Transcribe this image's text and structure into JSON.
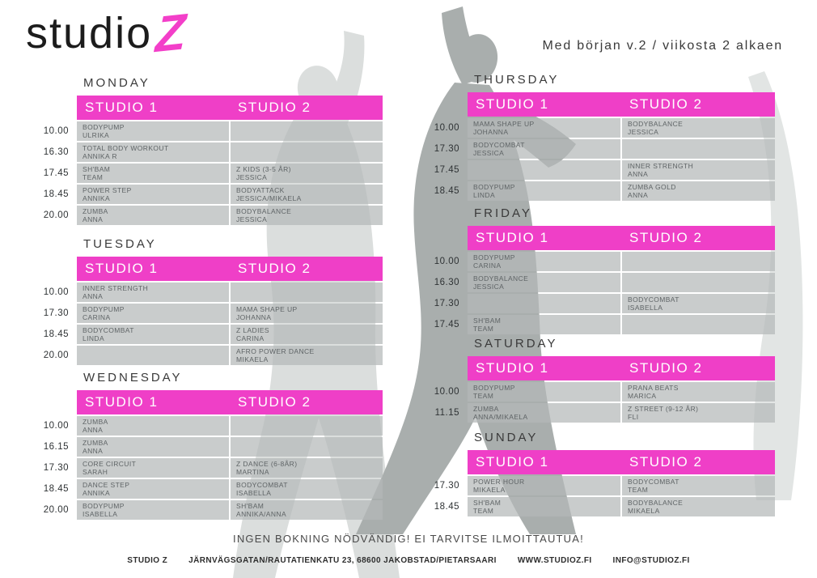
{
  "logo": {
    "word": "studio",
    "z": "Z"
  },
  "subtitle": "Med början v.2 / viikosta 2 alkaen",
  "table_headers": {
    "studio1": "STUDIO 1",
    "studio2": "STUDIO 2"
  },
  "colors": {
    "accent_pink": "#ef3fc7",
    "cell_gray": "#c9cccb",
    "silhouette_light": "#dbdedd",
    "silhouette_mid": "#a9aead"
  },
  "days": [
    {
      "name": "MONDAY",
      "rows": [
        {
          "time": "10.00",
          "studio1": {
            "class": "BODYPUMP",
            "instructor": "ULRIKA"
          },
          "studio2": null
        },
        {
          "time": "16.30",
          "studio1": {
            "class": "TOTAL BODY WORKOUT",
            "instructor": "ANNIKA R"
          },
          "studio2": null
        },
        {
          "time": "17.45",
          "studio1": {
            "class": "SH'BAM",
            "instructor": "TEAM"
          },
          "studio2": {
            "class": "Z KIDS (3-5 ÅR)",
            "instructor": "JESSICA"
          }
        },
        {
          "time": "18.45",
          "studio1": {
            "class": "POWER STEP",
            "instructor": "ANNIKA"
          },
          "studio2": {
            "class": "BODYATTACK",
            "instructor": "JESSICA/MIKAELA"
          }
        },
        {
          "time": "20.00",
          "studio1": {
            "class": "ZUMBA",
            "instructor": "ANNA"
          },
          "studio2": {
            "class": "BODYBALANCE",
            "instructor": "JESSICA"
          }
        }
      ]
    },
    {
      "name": "TUESDAY",
      "rows": [
        {
          "time": "10.00",
          "studio1": {
            "class": "INNER STRENGTH",
            "instructor": "ANNA"
          },
          "studio2": null
        },
        {
          "time": "17.30",
          "studio1": {
            "class": "BODYPUMP",
            "instructor": "CARINA"
          },
          "studio2": {
            "class": "MAMA SHAPE UP",
            "instructor": "JOHANNA"
          }
        },
        {
          "time": "18.45",
          "studio1": {
            "class": "BODYCOMBAT",
            "instructor": "LINDA"
          },
          "studio2": {
            "class": "Z LADIES",
            "instructor": "CARINA"
          }
        },
        {
          "time": "20.00",
          "studio1": null,
          "studio2": {
            "class": "AFRO POWER DANCE",
            "instructor": "MIKAELA"
          }
        }
      ]
    },
    {
      "name": "WEDNESDAY",
      "rows": [
        {
          "time": "10.00",
          "studio1": {
            "class": "ZUMBA",
            "instructor": "ANNA"
          },
          "studio2": null
        },
        {
          "time": "16.15",
          "studio1": {
            "class": "ZUMBA",
            "instructor": "ANNA"
          },
          "studio2": null
        },
        {
          "time": "17.30",
          "studio1": {
            "class": "CORE CIRCUIT",
            "instructor": "SARAH"
          },
          "studio2": {
            "class": "Z DANCE (6-8ÅR)",
            "instructor": "MARTINA"
          }
        },
        {
          "time": "18.45",
          "studio1": {
            "class": "DANCE STEP",
            "instructor": "ANNIKA"
          },
          "studio2": {
            "class": "BODYCOMBAT",
            "instructor": "ISABELLA"
          }
        },
        {
          "time": "20.00",
          "studio1": {
            "class": "BODYPUMP",
            "instructor": "ISABELLA"
          },
          "studio2": {
            "class": "SH'BAM",
            "instructor": "ANNIKA/ANNA"
          }
        }
      ]
    },
    {
      "name": "THURSDAY",
      "rows": [
        {
          "time": "10.00",
          "studio1": {
            "class": "MAMA SHAPE UP",
            "instructor": "JOHANNA"
          },
          "studio2": {
            "class": "BODYBALANCE",
            "instructor": "JESSICA"
          }
        },
        {
          "time": "17.30",
          "studio1": {
            "class": "BODYCOMBAT",
            "instructor": "JESSICA"
          },
          "studio2": null
        },
        {
          "time": "17.45",
          "studio1": null,
          "studio2": {
            "class": "INNER STRENGTH",
            "instructor": "ANNA"
          }
        },
        {
          "time": "18.45",
          "studio1": {
            "class": "BODYPUMP",
            "instructor": "LINDA"
          },
          "studio2": {
            "class": "ZUMBA GOLD",
            "instructor": "ANNA"
          }
        }
      ]
    },
    {
      "name": "FRIDAY",
      "rows": [
        {
          "time": "10.00",
          "studio1": {
            "class": "BODYPUMP",
            "instructor": "CARINA"
          },
          "studio2": null
        },
        {
          "time": "16.30",
          "studio1": {
            "class": "BODYBALANCE",
            "instructor": "JESSICA"
          },
          "studio2": null
        },
        {
          "time": "17.30",
          "studio1": null,
          "studio2": {
            "class": "BODYCOMBAT",
            "instructor": "ISABELLA"
          }
        },
        {
          "time": "17.45",
          "studio1": {
            "class": "SH'BAM",
            "instructor": "TEAM"
          },
          "studio2": null
        }
      ]
    },
    {
      "name": "SATURDAY",
      "rows": [
        {
          "time": "10.00",
          "studio1": {
            "class": "BODYPUMP",
            "instructor": "TEAM"
          },
          "studio2": {
            "class": "PRANA BEATS",
            "instructor": "MARICA"
          }
        },
        {
          "time": "11.15",
          "studio1": {
            "class": "ZUMBA",
            "instructor": "ANNA/MIKAELA"
          },
          "studio2": {
            "class": "Z STREET (9-12 ÅR)",
            "instructor": "FLI"
          }
        }
      ]
    },
    {
      "name": "SUNDAY",
      "rows": [
        {
          "time": "17.30",
          "studio1": {
            "class": "POWER HOUR",
            "instructor": "MIKAELA"
          },
          "studio2": {
            "class": "BODYCOMBAT",
            "instructor": "TEAM"
          }
        },
        {
          "time": "18.45",
          "studio1": {
            "class": "SH'BAM",
            "instructor": "TEAM"
          },
          "studio2": {
            "class": "BODYBALANCE",
            "instructor": "MIKAELA"
          }
        }
      ]
    }
  ],
  "footer": {
    "line1": "INGEN BOKNING NÖDVÄNDIG! EI TARVITSE ILMOITTAUTUA!",
    "parts": [
      "STUDIO Z",
      "JÄRNVÄGSGATAN/RAUTATIENKATU 23, 68600 JAKOBSTAD/PIETARSAARI",
      "WWW.STUDIOZ.FI",
      "INFO@STUDIOZ.FI"
    ]
  }
}
